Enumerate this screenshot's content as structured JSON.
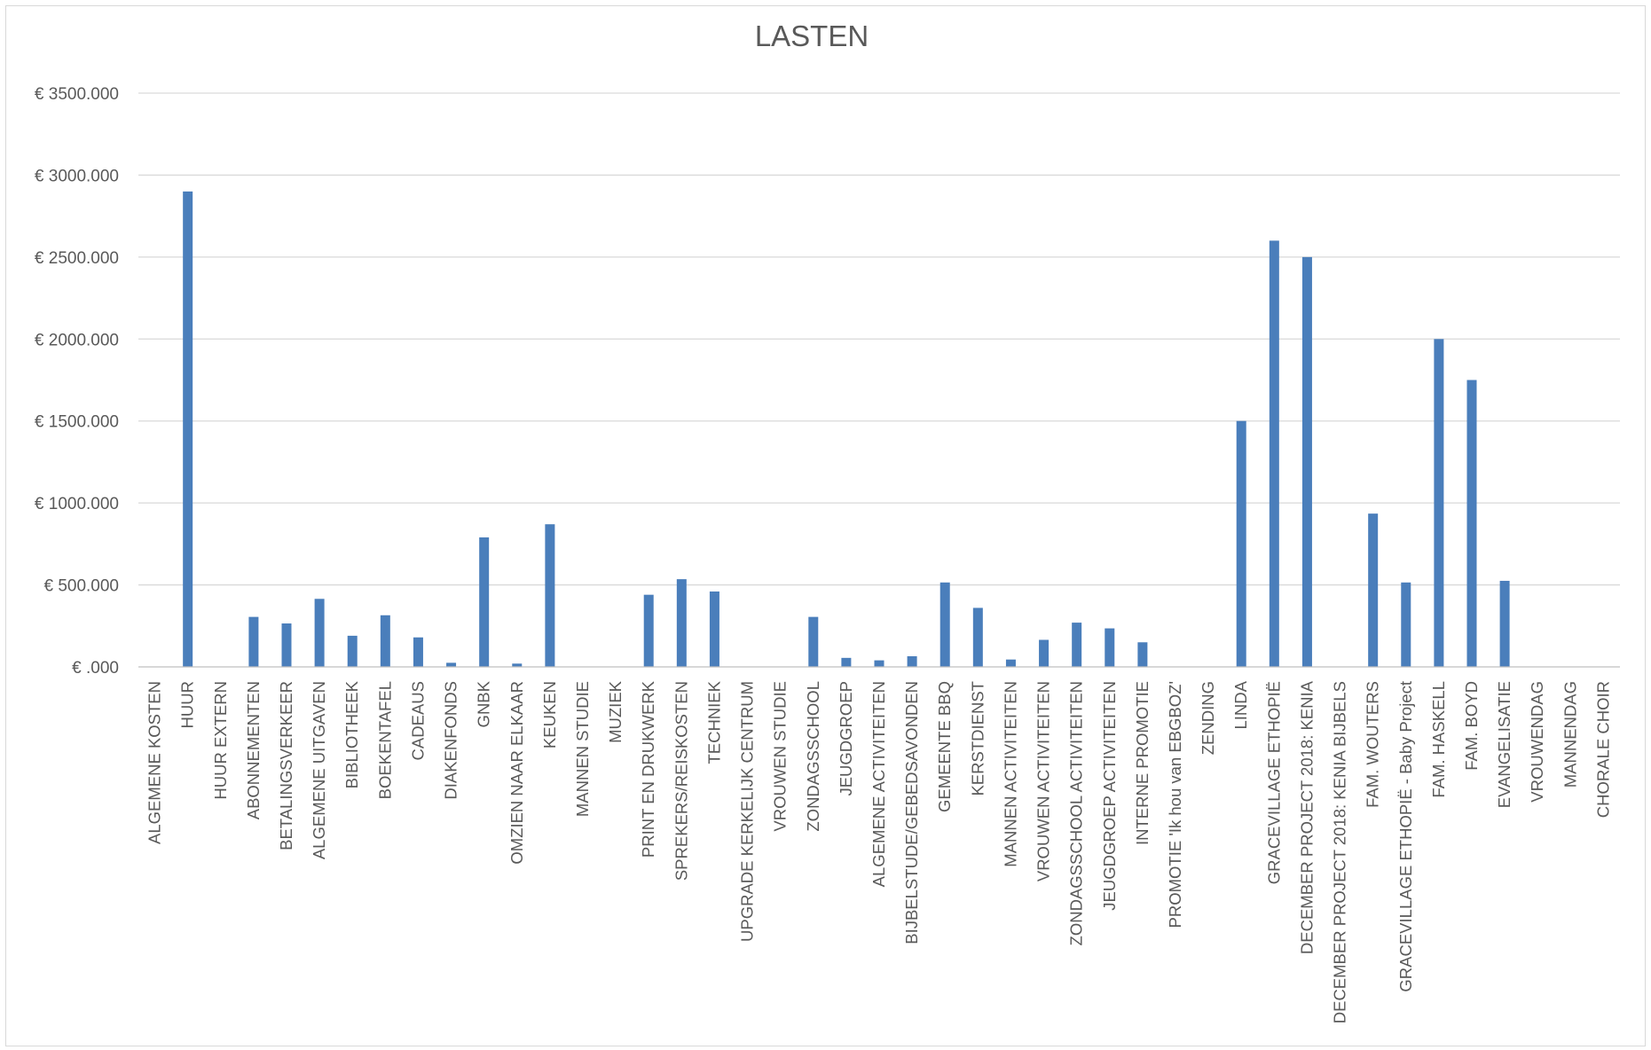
{
  "chart_data": {
    "type": "bar",
    "title": "LASTEN",
    "xlabel": "",
    "ylabel": "",
    "ylim": [
      0,
      3500
    ],
    "grid": true,
    "legend": "none",
    "y_ticks": [
      {
        "value": 0,
        "label": "€ .000"
      },
      {
        "value": 500,
        "label": "€ 500.000"
      },
      {
        "value": 1000,
        "label": "€ 1000.000"
      },
      {
        "value": 1500,
        "label": "€ 1500.000"
      },
      {
        "value": 2000,
        "label": "€ 2000.000"
      },
      {
        "value": 2500,
        "label": "€ 2500.000"
      },
      {
        "value": 3000,
        "label": "€ 3000.000"
      },
      {
        "value": 3500,
        "label": "€ 3500.000"
      }
    ],
    "bar_color": "#4a7ebb",
    "categories": [
      "ALGEMENE KOSTEN",
      "HUUR",
      "HUUR EXTERN",
      "ABONNEMENTEN",
      "BETALINGSVERKEER",
      "ALGEMENE UITGAVEN",
      "BIBLIOTHEEK",
      "BOEKENTAFEL",
      "CADEAUS",
      "DIAKENFONDS",
      "GNBK",
      "OMZIEN NAAR ELKAAR",
      "KEUKEN",
      "MANNEN STUDIE",
      "MUZIEK",
      "PRINT EN DRUKWERK",
      "SPREKERS/REISKOSTEN",
      "TECHNIEK",
      "UPGRADE KERKELIJK CENTRUM",
      "VROUWEN STUDIE",
      "ZONDAGSSCHOOL",
      "JEUGDGROEP",
      "ALGEMENE ACTIVITEITEN",
      "BIJBELSTUDE/GEBEDSAVONDEN",
      "GEMEENTE BBQ",
      "KERSTDIENST",
      "MANNEN ACTIVITEITEN",
      "VROUWEN ACTIVITEITEN",
      "ZONDAGSSCHOOL ACTIVITEITEN",
      "JEUGDGROEP ACTIVITEITEN",
      "INTERNE PROMOTIE",
      "PROMOTIE 'Ik hou van EBGBOZ'",
      "ZENDING",
      "LINDA",
      "GRACEVILLAGE ETHOPIË",
      "DECEMBER PROJECT 2018: KENIA",
      "DECEMBER PROJECT 2018: KENIA BIJBELS",
      "FAM. WOUTERS",
      "GRACEVILLAGE ETHOPIË - Baby Project",
      "FAM. HASKELL",
      "FAM. BOYD",
      "EVANGELISATIE",
      "VROUWENDAG",
      "MANNENDAG",
      "CHORALE CHOIR"
    ],
    "values": [
      0,
      2900,
      0,
      305,
      265,
      415,
      190,
      315,
      180,
      25,
      790,
      20,
      870,
      0,
      0,
      440,
      535,
      460,
      0,
      0,
      305,
      55,
      40,
      65,
      515,
      360,
      45,
      165,
      270,
      235,
      150,
      0,
      0,
      1500,
      2600,
      2500,
      0,
      935,
      515,
      2000,
      1750,
      525,
      0,
      0,
      0
    ]
  }
}
